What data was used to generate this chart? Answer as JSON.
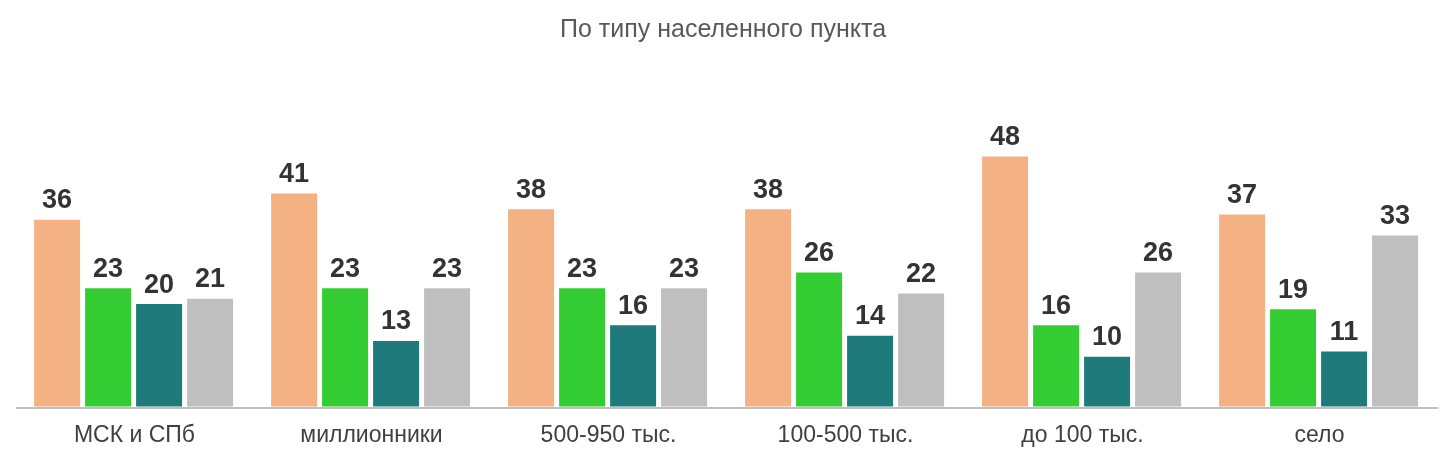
{
  "chart_data": {
    "type": "bar",
    "title": "По типу населенного пункта",
    "categories": [
      "МСК и СПб",
      "миллионники",
      "500-950 тыс.",
      "100-500 тыс.",
      "до 100 тыс.",
      "село"
    ],
    "series": [
      {
        "color": "#f4b183",
        "values": [
          36,
          41,
          38,
          38,
          48,
          37
        ]
      },
      {
        "color": "#33cc33",
        "values": [
          23,
          23,
          23,
          26,
          16,
          19
        ]
      },
      {
        "color": "#1f7b7b",
        "values": [
          20,
          13,
          16,
          14,
          10,
          11
        ]
      },
      {
        "color": "#bfbfbf",
        "values": [
          21,
          23,
          23,
          22,
          26,
          33
        ]
      }
    ],
    "data_labels": true,
    "grid": false,
    "legend": false
  }
}
